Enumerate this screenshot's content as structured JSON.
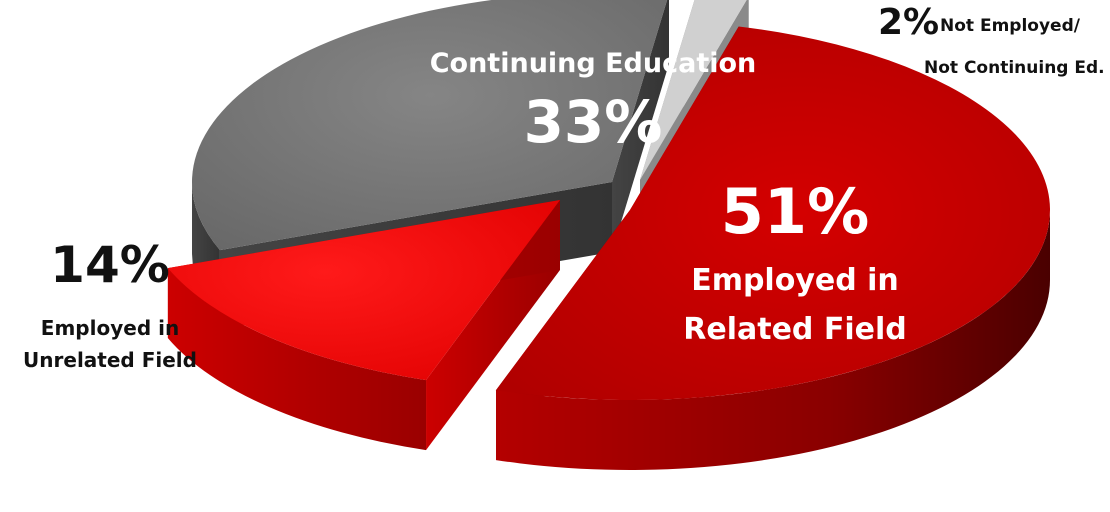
{
  "chart_data": {
    "type": "pie",
    "slices": [
      {
        "key": "related",
        "label_line1": "Employed in",
        "label_line2": "Related Field",
        "pct_label": "51%",
        "value": 51,
        "color": "#cc0000"
      },
      {
        "key": "unrelated",
        "label_line1": "Employed in",
        "label_line2": "Unrelated Field",
        "pct_label": "14%",
        "value": 14,
        "color": "#ee0000"
      },
      {
        "key": "continuing",
        "label_line1": "Continuing Education",
        "pct_label": "33%",
        "value": 33,
        "color": "#7a7a7a"
      },
      {
        "key": "none",
        "label_line1": "Not Employed/",
        "label_line2": "Not Continuing Ed.",
        "pct_label": "2%",
        "value": 2,
        "color": "#c8c8c8"
      }
    ]
  }
}
